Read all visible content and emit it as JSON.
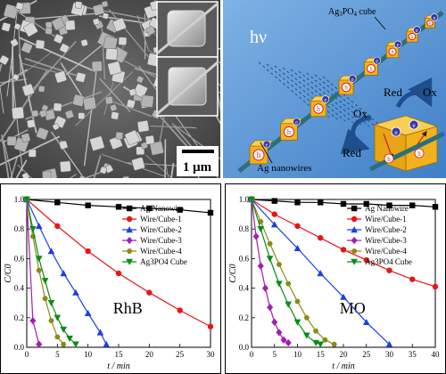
{
  "sem": {
    "scale_label": "1 μm"
  },
  "schematic": {
    "hv_label": "hν",
    "cube_label": "Ag3PO4 cube",
    "cube_label_main": "Ag",
    "cube_label_sub1": "3",
    "cube_label_mid": "PO",
    "cube_label_sub2": "4",
    "cube_label_tail": " cube",
    "nanowire_label": "Ag nanowires",
    "red_top": "Red",
    "ox_top": "Ox",
    "ox_left": "Ox",
    "red_bottom": "Red",
    "hole_symbol": "h",
    "electron_symbol": "e",
    "colors": {
      "background": "#5b9bd5",
      "cube": "#f2b21e",
      "wire": "#2b6f7a",
      "arrow": "#1f4e8c"
    }
  },
  "chart_data": [
    {
      "type": "line",
      "annotation": "RhB",
      "xlabel": "t / min",
      "ylabel": "C/C0",
      "xlim": [
        0,
        30
      ],
      "ylim": [
        0,
        1.0
      ],
      "xticks": [
        0,
        5,
        10,
        15,
        20,
        25,
        30
      ],
      "yticks": [
        0.0,
        0.2,
        0.4,
        0.6,
        0.8,
        1.0
      ],
      "legend_position": "top-right",
      "series": [
        {
          "name": "Ag Nanowire",
          "color": "#000000",
          "marker": "square",
          "x": [
            0,
            5,
            10,
            15,
            20,
            25,
            30
          ],
          "y": [
            1.0,
            0.98,
            0.96,
            0.95,
            0.94,
            0.93,
            0.91
          ]
        },
        {
          "name": "Wire/Cube-1",
          "color": "#e8141a",
          "marker": "circle",
          "x": [
            0,
            5,
            10,
            15,
            20,
            25,
            30
          ],
          "y": [
            1.0,
            0.82,
            0.65,
            0.5,
            0.37,
            0.25,
            0.14
          ]
        },
        {
          "name": "Wire/Cube-2",
          "color": "#1b3fe0",
          "marker": "triangle-up",
          "x": [
            0,
            2,
            4,
            6,
            8,
            10,
            12,
            13
          ],
          "y": [
            1.0,
            0.82,
            0.65,
            0.5,
            0.37,
            0.23,
            0.1,
            0.02
          ]
        },
        {
          "name": "Wire/Cube-3",
          "color": "#a020b0",
          "marker": "diamond",
          "x": [
            0,
            1,
            2
          ],
          "y": [
            1.0,
            0.18,
            0.02
          ]
        },
        {
          "name": "Wire/Cube-4",
          "color": "#8a8a1a",
          "marker": "hexagon",
          "x": [
            0,
            1,
            2,
            3,
            4,
            5,
            6
          ],
          "y": [
            1.0,
            0.75,
            0.52,
            0.33,
            0.18,
            0.07,
            0.02
          ]
        },
        {
          "name": "Ag3PO4 Cube",
          "color": "#0a8a1a",
          "marker": "triangle-down",
          "x": [
            0,
            1,
            2,
            3,
            4,
            5,
            6,
            7,
            8
          ],
          "y": [
            1.0,
            0.8,
            0.6,
            0.45,
            0.3,
            0.2,
            0.12,
            0.06,
            0.02
          ]
        }
      ]
    },
    {
      "type": "line",
      "annotation": "MO",
      "xlabel": "t / min",
      "ylabel": "C/C0",
      "xlim": [
        0,
        40
      ],
      "ylim": [
        0,
        1.0
      ],
      "xticks": [
        0,
        5,
        10,
        15,
        20,
        25,
        30,
        35,
        40
      ],
      "yticks": [
        0.0,
        0.2,
        0.4,
        0.6,
        0.8,
        1.0
      ],
      "legend_position": "top-right",
      "series": [
        {
          "name": "Ag Nanowire",
          "color": "#000000",
          "marker": "square",
          "x": [
            0,
            5,
            10,
            15,
            20,
            25,
            30,
            35,
            40
          ],
          "y": [
            1.0,
            0.99,
            0.98,
            0.98,
            0.97,
            0.97,
            0.96,
            0.96,
            0.95
          ]
        },
        {
          "name": "Wire/Cube-1",
          "color": "#e8141a",
          "marker": "circle",
          "x": [
            0,
            5,
            10,
            15,
            20,
            25,
            30,
            35,
            40
          ],
          "y": [
            1.0,
            0.9,
            0.82,
            0.74,
            0.66,
            0.59,
            0.52,
            0.46,
            0.41
          ]
        },
        {
          "name": "Wire/Cube-2",
          "color": "#1b3fe0",
          "marker": "triangle-up",
          "x": [
            0,
            5,
            10,
            15,
            20,
            25,
            30
          ],
          "y": [
            1.0,
            0.83,
            0.67,
            0.5,
            0.34,
            0.17,
            0.02
          ]
        },
        {
          "name": "Wire/Cube-3",
          "color": "#a020b0",
          "marker": "diamond",
          "x": [
            0,
            1,
            2,
            3,
            4,
            5,
            6,
            7,
            8
          ],
          "y": [
            1.0,
            0.75,
            0.55,
            0.4,
            0.27,
            0.17,
            0.1,
            0.05,
            0.03
          ]
        },
        {
          "name": "Wire/Cube-4",
          "color": "#8a8a1a",
          "marker": "hexagon",
          "x": [
            0,
            2,
            4,
            6,
            8,
            10,
            12,
            14,
            16,
            18
          ],
          "y": [
            1.0,
            0.85,
            0.7,
            0.56,
            0.43,
            0.31,
            0.2,
            0.11,
            0.05,
            0.02
          ]
        },
        {
          "name": "Ag3PO4 Cube",
          "color": "#0a8a1a",
          "marker": "triangle-down",
          "x": [
            0,
            2,
            4,
            6,
            8,
            10,
            12,
            14,
            15
          ],
          "y": [
            1.0,
            0.8,
            0.6,
            0.43,
            0.29,
            0.17,
            0.08,
            0.03,
            0.02
          ]
        }
      ]
    }
  ]
}
